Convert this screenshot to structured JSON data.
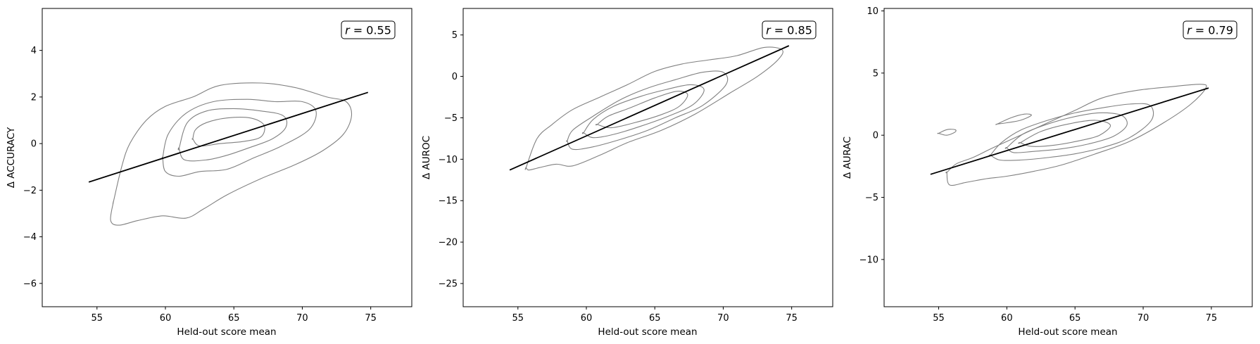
{
  "colors": {
    "contour": "#808080",
    "fit_line": "#000000",
    "axes": "#000000",
    "background": "#ffffff"
  },
  "chart_data": [
    {
      "type": "line",
      "xlabel": "Held-out score mean",
      "ylabel": "Δ ACCURACY",
      "xlim": [
        51,
        78
      ],
      "ylim": [
        -7,
        5.8
      ],
      "xticks": [
        55,
        60,
        65,
        70,
        75
      ],
      "yticks": [
        -6,
        -4,
        -2,
        0,
        2,
        4
      ],
      "annotation": {
        "r_symbol": "r",
        "r_rest": " = 0.55"
      },
      "series": [
        {
          "kind": "fit",
          "x": [
            54.4,
            74.8
          ],
          "y": [
            -1.65,
            2.2
          ]
        }
      ],
      "contours": [
        {
          "x": [
            56.2,
            56.0,
            56.6,
            58.0,
            59.8,
            61.5,
            62.8,
            64.5,
            67.0,
            69.5,
            71.5,
            73.0,
            73.6,
            73.2,
            71.8,
            69.5,
            67.0,
            64.0,
            62.0,
            60.0,
            58.6,
            57.4,
            56.8,
            56.2
          ],
          "y": [
            -2.5,
            -3.3,
            -3.5,
            -3.3,
            -3.1,
            -3.2,
            -2.8,
            -2.2,
            -1.5,
            -0.9,
            -0.3,
            0.4,
            1.2,
            1.8,
            2.0,
            2.4,
            2.6,
            2.5,
            2.0,
            1.6,
            1.0,
            0.0,
            -1.0,
            -2.5
          ]
        },
        {
          "x": [
            59.8,
            60.0,
            61.0,
            62.5,
            64.5,
            66.5,
            68.5,
            70.5,
            71.0,
            70.0,
            68.0,
            66.0,
            63.5,
            61.5,
            60.2,
            59.8
          ],
          "y": [
            -0.6,
            -1.2,
            -1.4,
            -1.2,
            -1.1,
            -0.6,
            -0.1,
            0.6,
            1.4,
            1.8,
            1.8,
            1.9,
            1.8,
            1.3,
            0.4,
            -0.6
          ]
        },
        {
          "x": [
            61.0,
            61.4,
            63.0,
            64.5,
            66.0,
            67.8,
            68.8,
            68.6,
            67.0,
            65.0,
            63.0,
            61.6,
            61.0
          ],
          "y": [
            -0.2,
            -0.7,
            -0.7,
            -0.5,
            -0.2,
            0.2,
            0.7,
            1.2,
            1.4,
            1.5,
            1.4,
            0.9,
            -0.2
          ]
        },
        {
          "x": [
            62.0,
            62.5,
            64.0,
            65.8,
            67.0,
            67.2,
            66.2,
            64.5,
            63.0,
            62.2,
            62.0
          ],
          "y": [
            0.2,
            -0.1,
            0.0,
            0.1,
            0.3,
            0.8,
            1.1,
            1.1,
            0.9,
            0.6,
            0.2
          ]
        }
      ]
    },
    {
      "type": "line",
      "xlabel": "Held-out score mean",
      "ylabel": "Δ AUROC",
      "xlim": [
        51,
        78
      ],
      "ylim": [
        -27.8,
        8.2
      ],
      "xticks": [
        55,
        60,
        65,
        70,
        75
      ],
      "yticks": [
        -25,
        -20,
        -15,
        -10,
        -5,
        0,
        5
      ],
      "annotation": {
        "r_symbol": "r",
        "r_rest": " = 0.85"
      },
      "series": [
        {
          "kind": "fit",
          "x": [
            54.4,
            74.8
          ],
          "y": [
            -11.3,
            3.7
          ]
        }
      ],
      "contours": [
        {
          "x": [
            55.6,
            55.8,
            56.6,
            57.8,
            59.0,
            61.0,
            63.0,
            65.5,
            68.0,
            70.5,
            72.5,
            74.0,
            74.3,
            73.0,
            71.0,
            69.0,
            67.0,
            65.0,
            63.0,
            61.0,
            59.0,
            57.5,
            56.4,
            55.6
          ],
          "y": [
            -11.0,
            -11.3,
            -11.0,
            -10.6,
            -10.8,
            -9.5,
            -8.0,
            -6.5,
            -4.5,
            -2.0,
            0.0,
            2.0,
            3.2,
            3.5,
            2.5,
            2.0,
            1.5,
            0.6,
            -1.0,
            -2.5,
            -4.0,
            -5.8,
            -7.5,
            -11.0
          ]
        },
        {
          "x": [
            58.6,
            59.0,
            60.5,
            62.5,
            64.5,
            66.5,
            68.5,
            70.2,
            70.0,
            68.5,
            66.5,
            64.5,
            62.5,
            60.5,
            59.0,
            58.6
          ],
          "y": [
            -7.8,
            -8.8,
            -8.5,
            -7.6,
            -6.5,
            -5.0,
            -3.5,
            -1.0,
            0.5,
            0.5,
            -0.4,
            -1.4,
            -2.8,
            -4.8,
            -6.5,
            -7.8
          ]
        },
        {
          "x": [
            59.8,
            60.5,
            62.0,
            64.0,
            66.0,
            67.8,
            68.6,
            67.6,
            65.8,
            64.0,
            62.0,
            60.5,
            59.8
          ],
          "y": [
            -6.8,
            -7.4,
            -7.0,
            -6.0,
            -4.8,
            -3.4,
            -1.6,
            -1.0,
            -1.6,
            -2.4,
            -3.6,
            -5.2,
            -6.8
          ]
        },
        {
          "x": [
            60.8,
            61.8,
            63.5,
            65.5,
            66.8,
            67.4,
            66.6,
            65.0,
            63.2,
            61.6,
            60.8
          ],
          "y": [
            -5.8,
            -6.2,
            -5.6,
            -4.6,
            -3.6,
            -2.2,
            -1.8,
            -2.6,
            -3.8,
            -4.8,
            -5.8
          ]
        }
      ]
    },
    {
      "type": "line",
      "xlabel": "Held-out score mean",
      "ylabel": "Δ AURAC",
      "xlim": [
        51,
        78
      ],
      "ylim": [
        -13.8,
        10.2
      ],
      "xticks": [
        55,
        60,
        65,
        70,
        75
      ],
      "yticks": [
        -10,
        -5,
        0,
        5,
        10
      ],
      "annotation": {
        "r_symbol": "r",
        "r_rest": " = 0.79"
      },
      "series": [
        {
          "kind": "fit",
          "x": [
            54.4,
            74.8
          ],
          "y": [
            -3.15,
            3.8
          ]
        }
      ],
      "contours": [
        {
          "x": [
            55.6,
            55.8,
            57.0,
            58.5,
            60.0,
            62.0,
            64.0,
            66.5,
            69.0,
            71.5,
            73.5,
            74.6,
            74.2,
            72.0,
            69.5,
            67.0,
            65.0,
            63.0,
            61.0,
            59.0,
            57.5,
            56.3,
            55.6
          ],
          "y": [
            -3.0,
            -4.0,
            -3.8,
            -3.5,
            -3.3,
            -2.9,
            -2.4,
            -1.5,
            -0.5,
            1.0,
            2.5,
            3.8,
            4.1,
            3.9,
            3.6,
            3.0,
            2.0,
            1.0,
            0.0,
            -1.0,
            -1.8,
            -2.3,
            -3.0
          ]
        },
        {
          "x": [
            58.8,
            59.5,
            61.0,
            63.0,
            65.0,
            67.0,
            69.0,
            70.6,
            70.5,
            69.0,
            67.0,
            65.0,
            63.0,
            61.0,
            59.6,
            58.8
          ],
          "y": [
            -1.6,
            -2.0,
            -2.0,
            -1.8,
            -1.5,
            -1.0,
            -0.2,
            1.2,
            2.4,
            2.5,
            2.2,
            1.8,
            1.2,
            0.4,
            -0.6,
            -1.6
          ]
        },
        {
          "x": [
            60.0,
            60.5,
            62.0,
            64.0,
            66.0,
            67.8,
            68.8,
            68.4,
            66.8,
            65.0,
            63.0,
            61.2,
            60.0
          ],
          "y": [
            -1.0,
            -1.4,
            -1.3,
            -1.1,
            -0.7,
            -0.1,
            0.8,
            1.6,
            1.8,
            1.5,
            0.9,
            0.1,
            -1.0
          ]
        },
        {
          "x": [
            61.0,
            61.8,
            63.5,
            65.5,
            66.8,
            67.6,
            66.5,
            64.5,
            62.5,
            61.0
          ],
          "y": [
            -0.6,
            -0.9,
            -0.8,
            -0.4,
            0.0,
            0.8,
            1.2,
            0.9,
            0.3,
            -0.6
          ]
        },
        {
          "x": [
            55.0,
            55.6,
            56.2,
            56.2,
            55.6,
            55.0
          ],
          "y": [
            0.15,
            0.0,
            0.25,
            0.45,
            0.45,
            0.15
          ]
        },
        {
          "x": [
            59.3,
            60.0,
            61.0,
            61.8,
            61.3,
            60.3,
            59.3
          ],
          "y": [
            0.9,
            1.0,
            1.2,
            1.6,
            1.7,
            1.4,
            0.9
          ]
        }
      ]
    }
  ]
}
